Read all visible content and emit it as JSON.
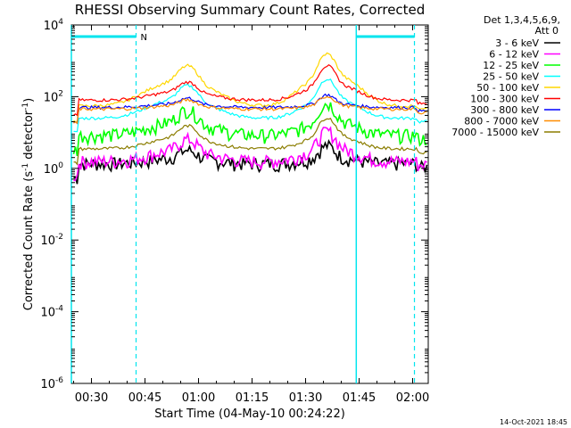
{
  "chart_data": {
    "type": "line",
    "title": "RHESSI Observing Summary Count Rates, Corrected",
    "xlabel": "Start Time (04-May-10 00:24:22)",
    "ylabel": "Corrected Count Rate (s⁻¹ detector⁻¹)",
    "ylabel_main": "Corrected Count Rate (s",
    "ylabel_sup1": "-1",
    "ylabel_mid": " detector",
    "ylabel_sup2": "-1",
    "ylabel_end": ")",
    "x_range_minutes": [
      24.37,
      124.37
    ],
    "x_ticks": [
      {
        "m": 30,
        "label": "00:30"
      },
      {
        "m": 45,
        "label": "00:45"
      },
      {
        "m": 60,
        "label": "01:00"
      },
      {
        "m": 75,
        "label": "01:15"
      },
      {
        "m": 90,
        "label": "01:30"
      },
      {
        "m": 105,
        "label": "01:45"
      },
      {
        "m": 120,
        "label": "02:00"
      }
    ],
    "y_scale": "log",
    "y_range": [
      1e-06,
      10000.0
    ],
    "y_ticks": [
      {
        "exp": 4,
        "label": "10",
        "sup": "4"
      },
      {
        "exp": 2,
        "label": "10",
        "sup": "2"
      },
      {
        "exp": 0,
        "label": "10",
        "sup": "0"
      },
      {
        "exp": -2,
        "label": "10",
        "sup": "-2"
      },
      {
        "exp": -4,
        "label": "10",
        "sup": "-4"
      },
      {
        "exp": -6,
        "label": "10",
        "sup": "-6"
      }
    ],
    "legend_header": [
      "Det 1,3,4,5,6,9,",
      "Att 0"
    ],
    "legend_placement": "right",
    "timestamp": "14-Oct-2021 18:45",
    "night_periods_minutes": [
      [
        24.37,
        42.5
      ],
      [
        104.2,
        120.5
      ]
    ],
    "flag_label": "N",
    "series": [
      {
        "name": "3 - 6 keV",
        "color": "#000000",
        "baseline": 1.3,
        "peak1": 3.0,
        "peak2": 4.0,
        "style": "noisy"
      },
      {
        "name": "6 - 12 keV",
        "color": "#ff00ff",
        "baseline": 1.5,
        "peak1": 6.0,
        "peak2": 10.0,
        "style": "noisy"
      },
      {
        "name": "12 - 25 keV",
        "color": "#00ff00",
        "baseline": 8.0,
        "peak1": 40.0,
        "peak2": 60.0,
        "style": "noisy"
      },
      {
        "name": "25 - 50 keV",
        "color": "#00ffff",
        "baseline": 25.0,
        "peak1": 200.0,
        "peak2": 300.0,
        "style": "smooth"
      },
      {
        "name": "50 - 100 keV",
        "color": "#ffd700",
        "baseline": 55.0,
        "peak1": 700.0,
        "peak2": 1500.0,
        "style": "smooth"
      },
      {
        "name": "100 - 300 keV",
        "color": "#ff0000",
        "baseline": 80.0,
        "peak1": 250.0,
        "peak2": 700.0,
        "style": "smooth"
      },
      {
        "name": "300 - 800 keV",
        "color": "#0000ff",
        "baseline": 50.0,
        "peak1": 90.0,
        "peak2": 110.0,
        "style": "smooth"
      },
      {
        "name": "800 - 7000 keV",
        "color": "#ff8c00",
        "baseline": 45.0,
        "peak1": 80.0,
        "peak2": 100.0,
        "style": "smooth"
      },
      {
        "name": "7000 - 15000 keV",
        "color": "#8b7d00",
        "baseline": 3.5,
        "peak1": 15.0,
        "peak2": 25.0,
        "style": "smooth"
      }
    ]
  }
}
